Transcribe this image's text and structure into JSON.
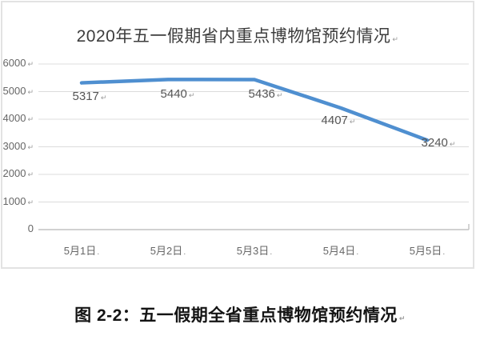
{
  "chart_data": {
    "type": "line",
    "title": "2020年五一假期省内重点博物馆预约情况",
    "categories": [
      "5月1日",
      "5月2日",
      "5月3日",
      "5月4日",
      "5月5日"
    ],
    "values": [
      5317,
      5440,
      5436,
      4407,
      3240
    ],
    "xlabel": "",
    "ylabel": "",
    "ylim": [
      0,
      6000
    ],
    "yticks": [
      0,
      1000,
      2000,
      3000,
      4000,
      5000,
      6000
    ],
    "grid": true,
    "legend": false,
    "line_color": "#4f8fd0",
    "gridline_color": "#dcdcdc",
    "axis_color": "#c2c2c2",
    "tick_label_color": "#666666",
    "data_label_color": "#555555"
  },
  "marks": {
    "paragraph_mark": "↵",
    "date_mark": "."
  },
  "caption": {
    "text": "图 2-2：五一假期全省重点博物馆预约情况"
  }
}
